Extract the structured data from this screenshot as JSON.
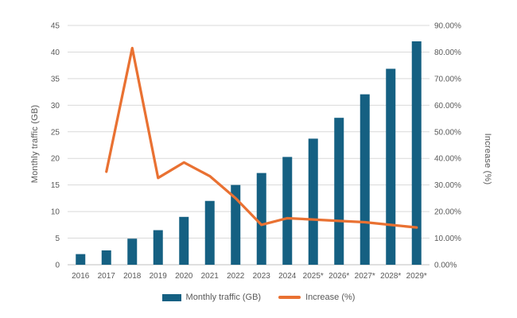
{
  "chart_data": {
    "type": "bar",
    "subtype": "combo-bar-line-dual-axis",
    "title": "",
    "categories": [
      "2016",
      "2017",
      "2018",
      "2019",
      "2020",
      "2021",
      "2022",
      "2023",
      "2024",
      "2025*",
      "2026*",
      "2027*",
      "2028*",
      "2029*"
    ],
    "series": [
      {
        "name": "Monthly traffic (GB)",
        "type": "bar",
        "axis": "left",
        "color": "#156082",
        "values": [
          2,
          2.7,
          4.9,
          6.5,
          9,
          12,
          15,
          17.25,
          20.27,
          23.71,
          27.63,
          32.05,
          36.85,
          42.01
        ]
      },
      {
        "name": "Increase (%)",
        "type": "line",
        "axis": "right",
        "color": "#E97132",
        "values": [
          null,
          35,
          81.48,
          32.65,
          38.46,
          33.33,
          25,
          15,
          17.5,
          17,
          16.5,
          16,
          15,
          14
        ]
      }
    ],
    "left_axis": {
      "label": "Monthly traffic (GB)",
      "min": 0,
      "max": 45,
      "step": 5,
      "tick_labels": [
        "0",
        "5",
        "10",
        "15",
        "20",
        "25",
        "30",
        "35",
        "40",
        "45"
      ]
    },
    "right_axis": {
      "label": "Increase (%)",
      "min": 0,
      "max": 90,
      "step": 10,
      "tick_labels": [
        "0.00%",
        "10.00%",
        "20.00%",
        "30.00%",
        "40.00%",
        "50.00%",
        "60.00%",
        "70.00%",
        "80.00%",
        "90.00%"
      ]
    },
    "legend": {
      "position": "bottom",
      "items": [
        {
          "label": "Monthly traffic (GB)",
          "swatch": "rect",
          "color": "#156082"
        },
        {
          "label": "Increase (%)",
          "swatch": "line",
          "color": "#E97132"
        }
      ]
    },
    "grid": true,
    "colors": {
      "bar": "#156082",
      "line": "#E97132",
      "text": "#595959",
      "gridline": "#D9D9D9",
      "axis_line": "#BFBFBF",
      "background": "#FFFFFF"
    }
  }
}
